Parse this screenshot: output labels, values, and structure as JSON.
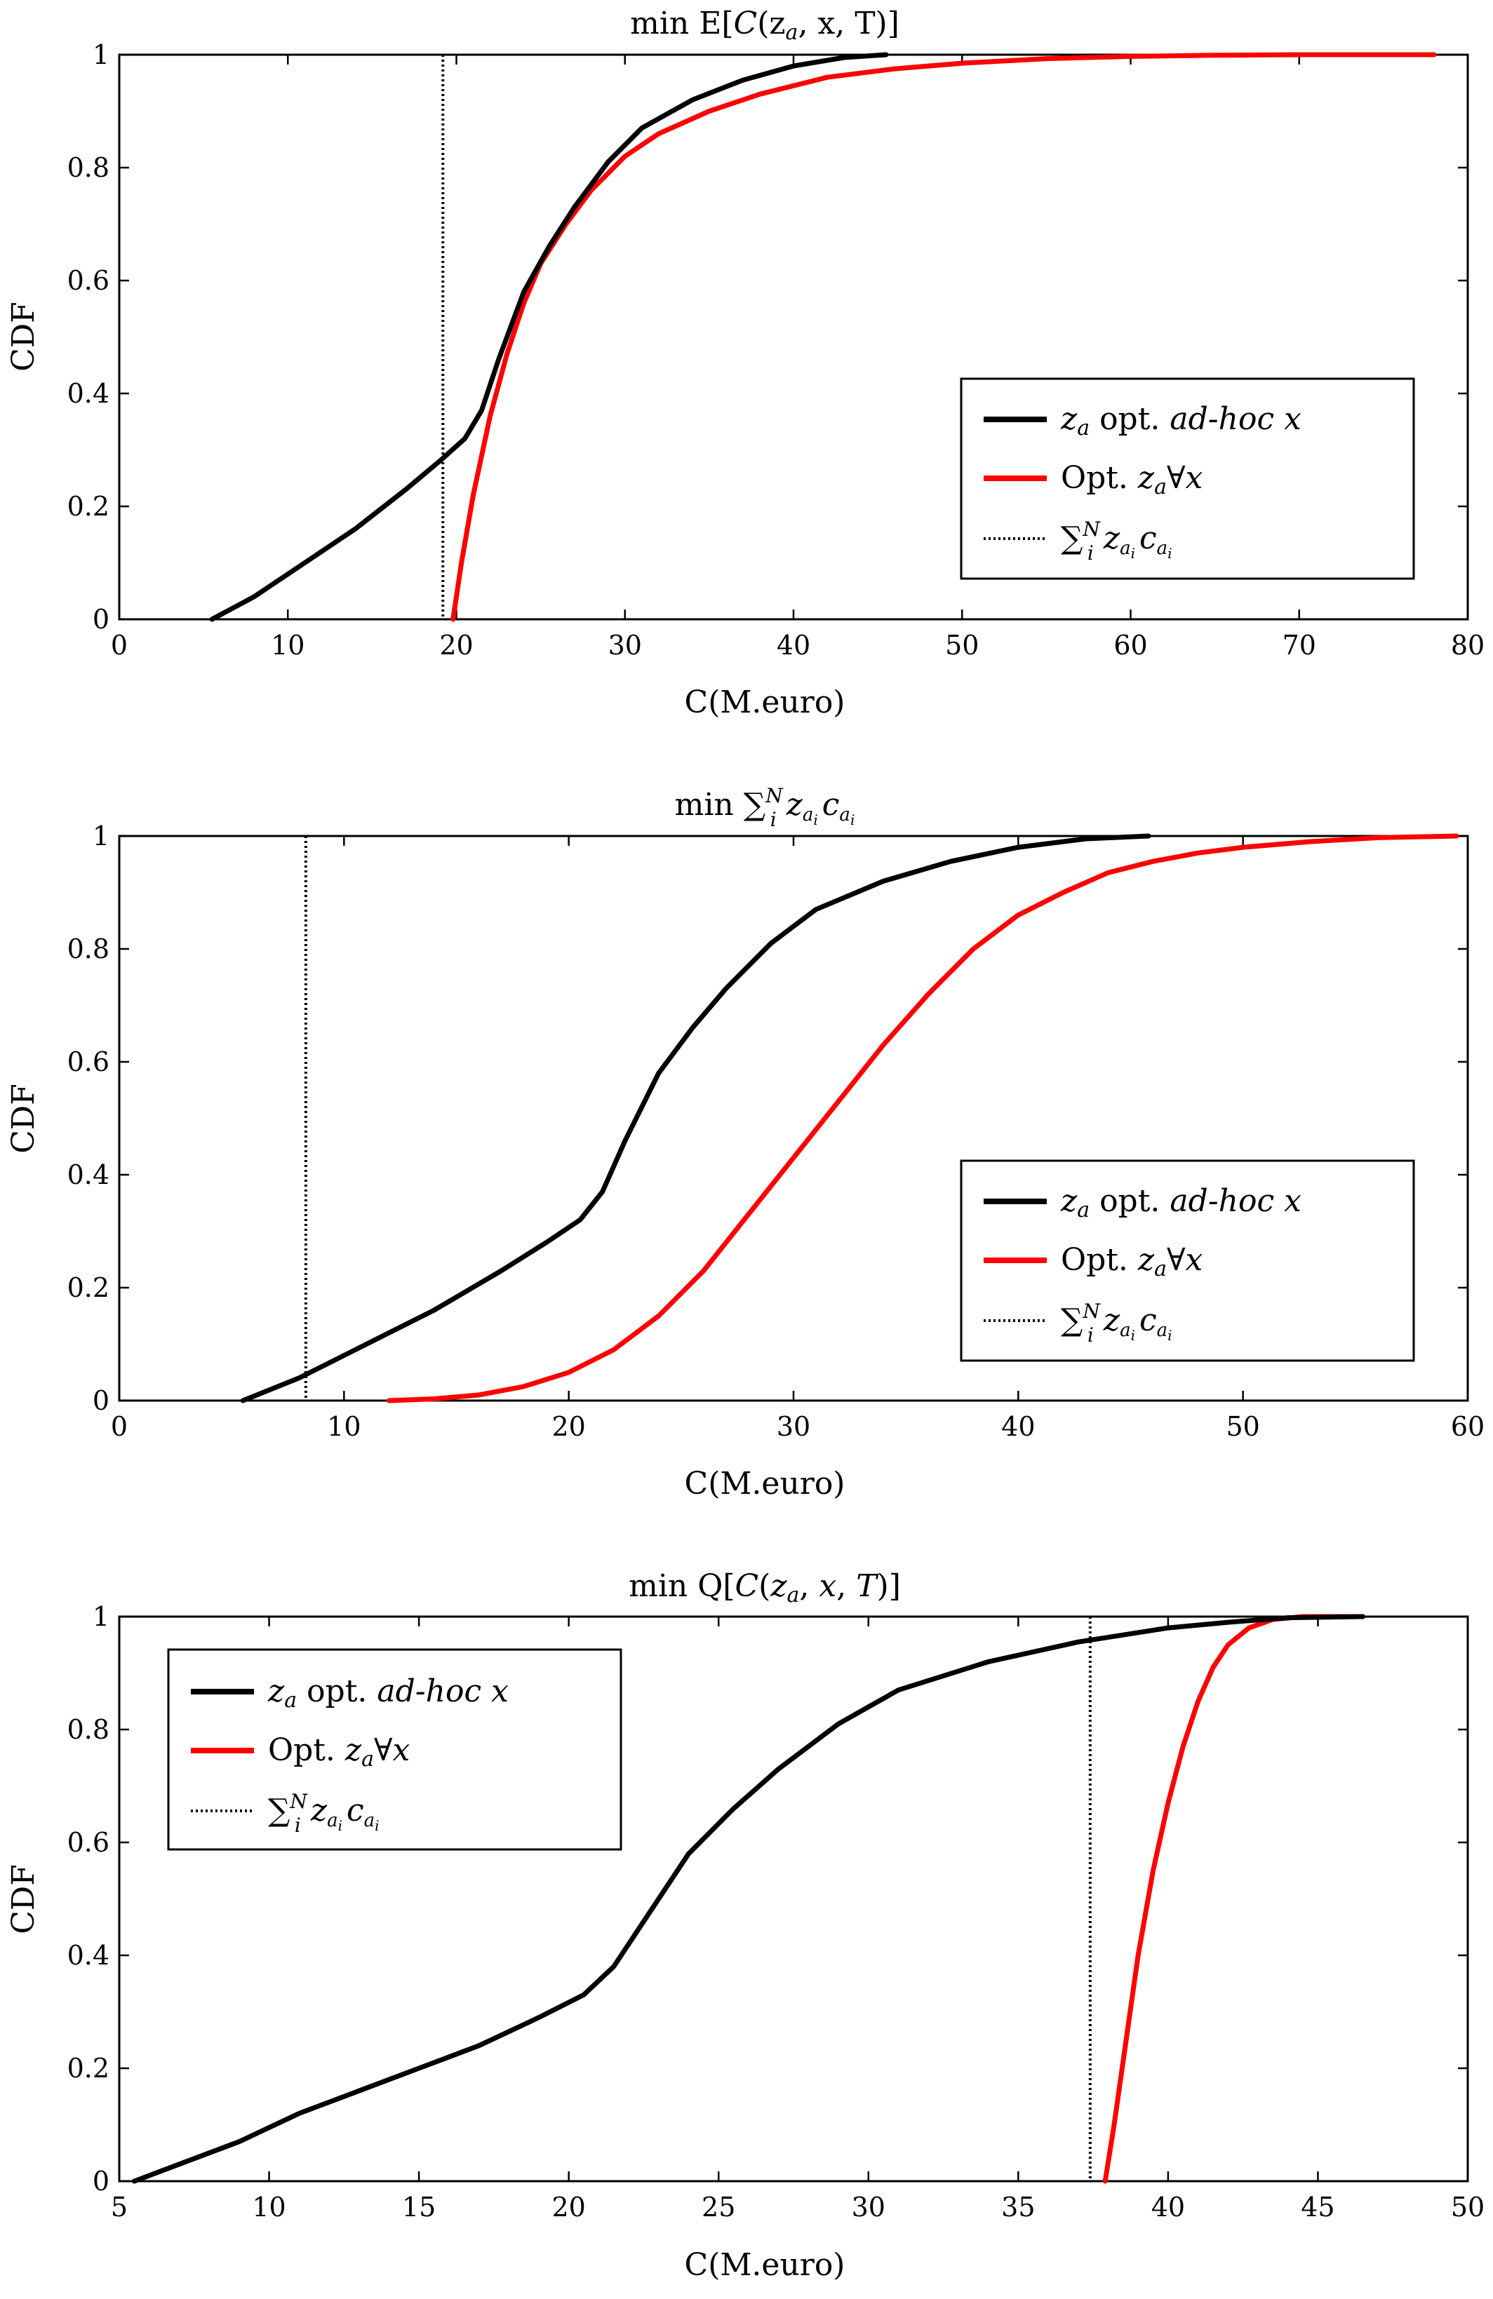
{
  "chart_data": [
    {
      "type": "line",
      "title": "min E[C(z_a, x, T)]",
      "title_parts": {
        "prefix": "min E[",
        "c": "C",
        "args": "(z",
        "sub": "a",
        "tail": ", x, T)]"
      },
      "xlabel": "C(M.euro)",
      "ylabel": "CDF",
      "xlim": [
        0,
        80
      ],
      "ylim": [
        0,
        1
      ],
      "xticks": [
        "0",
        "10",
        "20",
        "30",
        "40",
        "50",
        "60",
        "70",
        "80"
      ],
      "yticks": [
        "0",
        "0.2",
        "0.4",
        "0.6",
        "0.8",
        "1"
      ],
      "legend_position": "lower-right",
      "series": [
        {
          "name": "z_a opt. ad-hoc x",
          "color": "#000000",
          "x": [
            5.5,
            8,
            11,
            14,
            17,
            19,
            20.5,
            21.5,
            22.5,
            24,
            25.5,
            27,
            29,
            31,
            34,
            37,
            40,
            43,
            45.5
          ],
          "y": [
            0,
            0.04,
            0.1,
            0.16,
            0.23,
            0.28,
            0.32,
            0.37,
            0.46,
            0.58,
            0.66,
            0.73,
            0.81,
            0.87,
            0.92,
            0.955,
            0.98,
            0.995,
            1.0
          ]
        },
        {
          "name": "Opt. z_a∀x",
          "color": "#ff0000",
          "x": [
            19.8,
            20.3,
            21,
            22,
            23,
            24,
            25,
            26.5,
            28,
            30,
            32,
            35,
            38,
            42,
            46,
            50,
            55,
            60,
            65,
            70,
            78
          ],
          "y": [
            0,
            0.1,
            0.22,
            0.36,
            0.47,
            0.56,
            0.63,
            0.7,
            0.76,
            0.82,
            0.86,
            0.9,
            0.93,
            0.96,
            0.975,
            0.985,
            0.993,
            0.997,
            0.999,
            1.0,
            1.0
          ]
        }
      ],
      "reference_line": {
        "name": "∑_i^N z_ai c_ai",
        "x": 19.2,
        "style": "dotted"
      }
    },
    {
      "type": "line",
      "title": "min ∑_i^N z_ai c_ai",
      "xlabel": "C(M.euro)",
      "ylabel": "CDF",
      "xlim": [
        0,
        60
      ],
      "ylim": [
        0,
        1
      ],
      "xticks": [
        "0",
        "10",
        "20",
        "30",
        "40",
        "50",
        "60"
      ],
      "yticks": [
        "0",
        "0.2",
        "0.4",
        "0.6",
        "0.8",
        "1"
      ],
      "legend_position": "lower-right",
      "series": [
        {
          "name": "z_a opt. ad-hoc x",
          "color": "#000000",
          "x": [
            5.5,
            8,
            11,
            14,
            17,
            19,
            20.5,
            21.5,
            22.5,
            24,
            25.5,
            27,
            29,
            31,
            34,
            37,
            40,
            43,
            45.8
          ],
          "y": [
            0,
            0.04,
            0.1,
            0.16,
            0.23,
            0.28,
            0.32,
            0.37,
            0.46,
            0.58,
            0.66,
            0.73,
            0.81,
            0.87,
            0.92,
            0.955,
            0.98,
            0.995,
            1.0
          ]
        },
        {
          "name": "Opt. z_a∀x",
          "color": "#ff0000",
          "x": [
            12,
            14,
            16,
            18,
            20,
            22,
            24,
            26,
            28,
            30,
            32,
            34,
            36,
            38,
            40,
            42,
            44,
            46,
            48,
            50,
            53,
            56,
            59.5
          ],
          "y": [
            0,
            0.003,
            0.01,
            0.025,
            0.05,
            0.09,
            0.15,
            0.23,
            0.33,
            0.43,
            0.53,
            0.63,
            0.72,
            0.8,
            0.86,
            0.9,
            0.935,
            0.955,
            0.97,
            0.98,
            0.99,
            0.997,
            1.0
          ]
        }
      ],
      "reference_line": {
        "name": "∑_i^N z_ai c_ai",
        "x": 8.3,
        "style": "dotted"
      }
    },
    {
      "type": "line",
      "title": "min Q[C(z_a, x, T)]",
      "xlabel": "C(M.euro)",
      "ylabel": "CDF",
      "xlim": [
        5,
        50
      ],
      "ylim": [
        0,
        1
      ],
      "xticks": [
        "5",
        "10",
        "15",
        "20",
        "25",
        "30",
        "35",
        "40",
        "45",
        "50"
      ],
      "yticks": [
        "0",
        "0.2",
        "0.4",
        "0.6",
        "0.8",
        "1"
      ],
      "legend_position": "upper-left",
      "series": [
        {
          "name": "z_a opt. ad-hoc x",
          "color": "#000000",
          "x": [
            5.5,
            7,
            9,
            11,
            13,
            15,
            17,
            19,
            20.5,
            21.5,
            22.5,
            24,
            25.5,
            27,
            29,
            31,
            34,
            37,
            40,
            42,
            44,
            46.5
          ],
          "y": [
            0,
            0.03,
            0.07,
            0.12,
            0.16,
            0.2,
            0.24,
            0.29,
            0.33,
            0.38,
            0.46,
            0.58,
            0.66,
            0.73,
            0.81,
            0.87,
            0.92,
            0.955,
            0.98,
            0.99,
            0.998,
            1.0
          ]
        },
        {
          "name": "Opt. z_a∀x",
          "color": "#ff0000",
          "x": [
            37.9,
            38.2,
            38.6,
            39,
            39.5,
            40,
            40.5,
            41,
            41.5,
            42,
            42.7,
            43.5,
            44.5,
            46.5
          ],
          "y": [
            0,
            0.1,
            0.25,
            0.4,
            0.55,
            0.67,
            0.77,
            0.85,
            0.91,
            0.95,
            0.98,
            0.995,
            1.0,
            1.0
          ]
        }
      ],
      "reference_line": {
        "name": "∑_i^N z_ai c_ai",
        "x": 37.4,
        "style": "dotted"
      }
    }
  ]
}
